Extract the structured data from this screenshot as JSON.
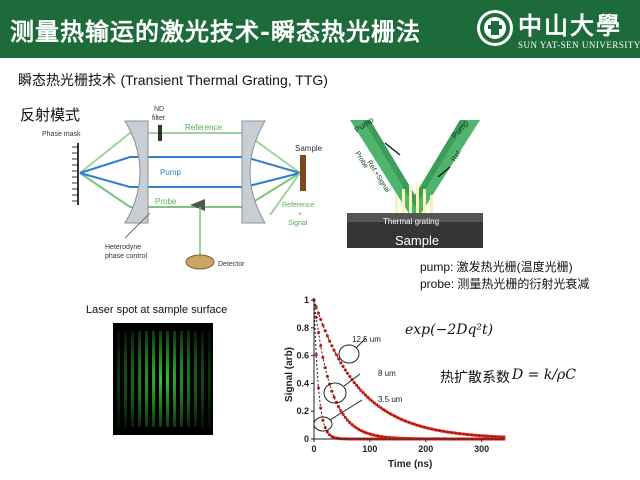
{
  "header": {
    "title": "测量热输运的激光技术-瞬态热光栅法",
    "logo_name": "中山大學",
    "logo_english": "SUN YAT-SEN UNIVERSITY"
  },
  "subtitle": {
    "cn": "瞬态热光栅技术",
    "en": "(Transient Thermal Grating, TTG)"
  },
  "mode_label": "反射模式",
  "setup": {
    "phase_mask": "Phase mask",
    "nd_filter_line1": "ND",
    "nd_filter_line2": "filter",
    "reference": "Reference",
    "pump": "Pump",
    "probe": "Probe",
    "sample": "Sample",
    "ref_signal_1": "Reference",
    "ref_signal_2": "+",
    "ref_signal_3": "Signal",
    "heterodyne_1": "Heterodyne",
    "heterodyne_2": "phase control",
    "detector": "Detector"
  },
  "grating": {
    "pump_left": "Pump",
    "pump_right": "Pump",
    "probe": "Probe",
    "ref_signal": "Ref.+Signal",
    "ref": "Ref.",
    "thermal_grating": "Thermal grating",
    "sample": "Sample"
  },
  "notes": {
    "pump": "pump: 激发热光栅(温度光栅)",
    "probe": "probe: 测量热光栅的衍射光衰减"
  },
  "laser_spot": {
    "caption": "Laser spot at sample surface",
    "fringe_color": "#2fc832"
  },
  "formulas": {
    "decay": "exp(−2Dq²t)",
    "diffusivity_label": "热扩散系数",
    "diffusivity_formula": "D = k/ρC"
  },
  "chart_data": {
    "type": "scatter",
    "xlabel": "Time (ns)",
    "ylabel": "Signal (arb)",
    "xlim": [
      0,
      340
    ],
    "ylim": [
      0,
      1
    ],
    "xticks": [
      0,
      100,
      200,
      300
    ],
    "yticks": [
      0,
      0.2,
      0.4,
      0.6,
      0.8,
      1
    ],
    "series": [
      {
        "label": "12.5 um",
        "tau": 80,
        "color": "#e8281e"
      },
      {
        "label": "8 um",
        "tau": 30,
        "color": "#e8281e"
      },
      {
        "label": "3.5 um",
        "tau": 8,
        "color": "#e8281e"
      }
    ],
    "fit_color": "#222222",
    "annotations": [
      "12.5 um",
      "8 um",
      "3.5 um"
    ]
  }
}
